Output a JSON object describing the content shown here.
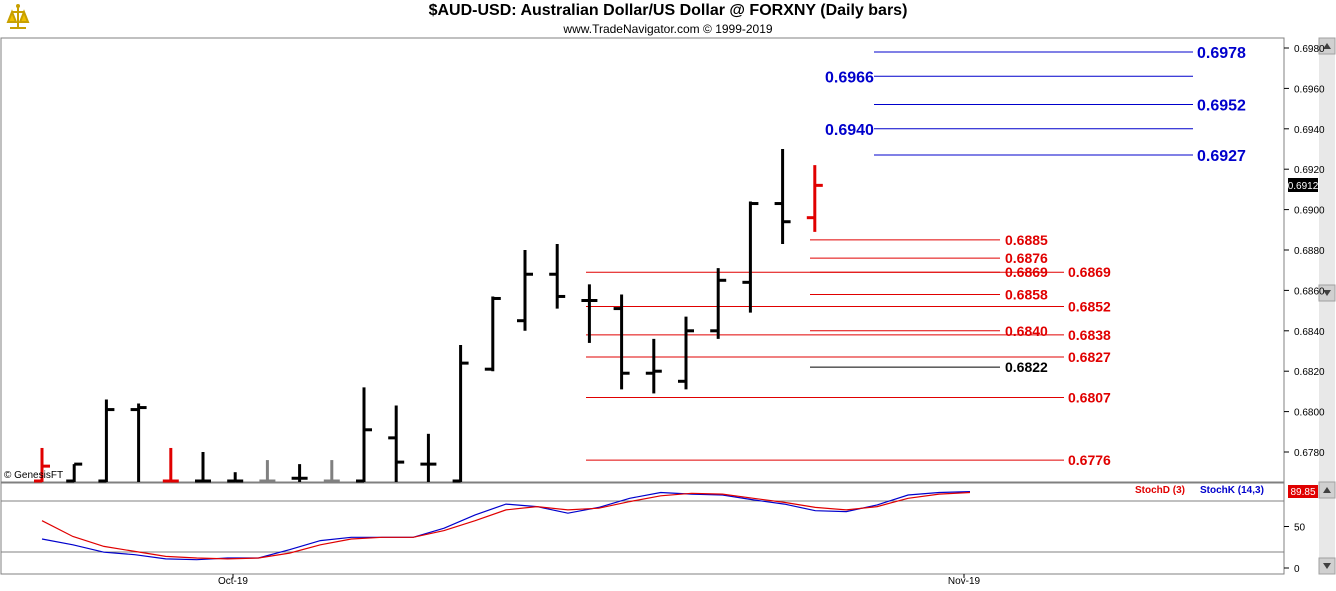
{
  "header": {
    "title": "$AUD-USD:  Australian Dollar/US Dollar @ FORXNY  (Daily bars)",
    "subtitle": "www.TradeNavigator.com © 1999-2019"
  },
  "watermark": "© GenesisFT",
  "colors": {
    "bar_default": "#000000",
    "bar_down": "#e00000",
    "bar_neutral": "#808080",
    "blue_level": "#0000cc",
    "red_level": "#e00000",
    "stoch_k": "#0000cc",
    "stoch_d": "#e00000"
  },
  "chart_data": [
    {
      "type": "ohlc",
      "title": "$AUD-USD:  Australian Dollar/US Dollar @ FORXNY  (Daily bars)",
      "y_ticks": [
        "0.6780",
        "0.6800",
        "0.6820",
        "0.6840",
        "0.6860",
        "0.6880",
        "0.6900",
        "0.6920",
        "0.6940",
        "0.6960",
        "0.6980"
      ],
      "ylim": [
        0.6766,
        0.6993
      ],
      "last_price": "0.6912",
      "x_labels": [
        "Oct-19",
        "Nov-19"
      ],
      "bars": [
        {
          "o": 0.6765,
          "h": 0.6782,
          "l": 0.6765,
          "c": 0.6773,
          "color": "down"
        },
        {
          "o": 0.6765,
          "h": 0.6774,
          "l": 0.6765,
          "c": 0.6774,
          "color": "default"
        },
        {
          "o": 0.6765,
          "h": 0.6806,
          "l": 0.6765,
          "c": 0.6801,
          "color": "default"
        },
        {
          "o": 0.6801,
          "h": 0.6804,
          "l": 0.6765,
          "c": 0.6802,
          "color": "default"
        },
        {
          "o": 0.6765,
          "h": 0.6782,
          "l": 0.6765,
          "c": 0.6765,
          "color": "down"
        },
        {
          "o": 0.6765,
          "h": 0.678,
          "l": 0.6765,
          "c": 0.6765,
          "color": "default"
        },
        {
          "o": 0.6765,
          "h": 0.677,
          "l": 0.6765,
          "c": 0.6765,
          "color": "default"
        },
        {
          "o": 0.6765,
          "h": 0.6776,
          "l": 0.6765,
          "c": 0.6765,
          "color": "neutral"
        },
        {
          "o": 0.6767,
          "h": 0.6774,
          "l": 0.6765,
          "c": 0.6767,
          "color": "default"
        },
        {
          "o": 0.6765,
          "h": 0.6776,
          "l": 0.6765,
          "c": 0.6765,
          "color": "neutral"
        },
        {
          "o": 0.6765,
          "h": 0.6812,
          "l": 0.6765,
          "c": 0.6791,
          "color": "default"
        },
        {
          "o": 0.6787,
          "h": 0.6803,
          "l": 0.6765,
          "c": 0.6775,
          "color": "default"
        },
        {
          "o": 0.6774,
          "h": 0.6789,
          "l": 0.6765,
          "c": 0.6774,
          "color": "default"
        },
        {
          "o": 0.6765,
          "h": 0.6833,
          "l": 0.6765,
          "c": 0.6824,
          "color": "default"
        },
        {
          "o": 0.6821,
          "h": 0.6857,
          "l": 0.682,
          "c": 0.6856,
          "color": "default"
        },
        {
          "o": 0.6845,
          "h": 0.688,
          "l": 0.684,
          "c": 0.6868,
          "color": "default"
        },
        {
          "o": 0.6868,
          "h": 0.6883,
          "l": 0.6851,
          "c": 0.6857,
          "color": "default"
        },
        {
          "o": 0.6855,
          "h": 0.6863,
          "l": 0.6834,
          "c": 0.6855,
          "color": "default"
        },
        {
          "o": 0.6851,
          "h": 0.6858,
          "l": 0.6811,
          "c": 0.6819,
          "color": "default"
        },
        {
          "o": 0.6819,
          "h": 0.6836,
          "l": 0.6809,
          "c": 0.682,
          "color": "default"
        },
        {
          "o": 0.6815,
          "h": 0.6847,
          "l": 0.6811,
          "c": 0.684,
          "color": "default"
        },
        {
          "o": 0.684,
          "h": 0.6871,
          "l": 0.6836,
          "c": 0.6865,
          "color": "default"
        },
        {
          "o": 0.6864,
          "h": 0.6904,
          "l": 0.6849,
          "c": 0.6903,
          "color": "default"
        },
        {
          "o": 0.6903,
          "h": 0.693,
          "l": 0.6883,
          "c": 0.6894,
          "color": "default"
        },
        {
          "o": 0.6896,
          "h": 0.6922,
          "l": 0.6889,
          "c": 0.6912,
          "color": "down"
        }
      ],
      "blue_levels": [
        {
          "value": 0.6978,
          "label": "0.6978",
          "label_side": "right"
        },
        {
          "value": 0.6966,
          "label": "0.6966",
          "label_side": "left"
        },
        {
          "value": 0.6952,
          "label": "0.6952",
          "label_side": "right"
        },
        {
          "value": 0.694,
          "label": "0.6940",
          "label_side": "left"
        },
        {
          "value": 0.6927,
          "label": "0.6927",
          "label_side": "right"
        }
      ],
      "red_levels_inner": [
        {
          "value": 0.6885,
          "label": "0.6885"
        },
        {
          "value": 0.6876,
          "label": "0.6876"
        },
        {
          "value": 0.6869,
          "label": "0.6869"
        },
        {
          "value": 0.6858,
          "label": "0.6858"
        },
        {
          "value": 0.684,
          "label": "0.6840"
        }
      ],
      "black_level": {
        "value": 0.6822,
        "label": "0.6822"
      },
      "red_levels_outer": [
        {
          "value": 0.6869,
          "label": "0.6869"
        },
        {
          "value": 0.6852,
          "label": "0.6852"
        },
        {
          "value": 0.6838,
          "label": "0.6838"
        },
        {
          "value": 0.6827,
          "label": "0.6827"
        },
        {
          "value": 0.6807,
          "label": "0.6807"
        },
        {
          "value": 0.6776,
          "label": "0.6776"
        }
      ]
    },
    {
      "type": "line",
      "indicator": "Stochastic",
      "legend": [
        "StochD (3)",
        "StochK (14,3)"
      ],
      "last_value": "89.85",
      "y_ticks": [
        "0",
        "50"
      ],
      "ylim": [
        0,
        100
      ],
      "series": [
        {
          "name": "StochK (14,3)",
          "values": [
            35,
            28,
            19,
            16,
            11,
            10,
            12,
            12,
            22,
            33,
            37,
            37,
            37,
            48,
            64,
            77,
            74,
            66,
            73,
            84,
            91,
            89,
            88,
            82,
            77,
            69,
            68,
            76,
            88,
            91,
            92
          ]
        },
        {
          "name": "StochD (3)",
          "values": [
            57,
            38,
            26,
            20,
            14,
            12,
            11,
            12,
            18,
            28,
            35,
            37,
            37,
            45,
            57,
            70,
            74,
            70,
            72,
            80,
            87,
            90,
            89,
            84,
            79,
            73,
            70,
            74,
            84,
            89,
            91
          ]
        }
      ]
    }
  ]
}
